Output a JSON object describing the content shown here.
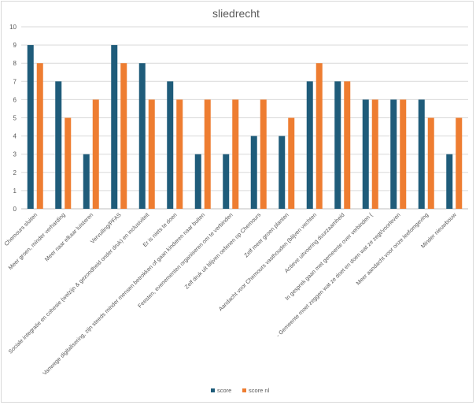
{
  "chart_data": {
    "type": "bar",
    "title": "sliedrecht",
    "xlabel": "",
    "ylabel": "",
    "ylim": [
      0,
      10
    ],
    "yticks": [
      0,
      1,
      2,
      3,
      4,
      5,
      6,
      7,
      8,
      9,
      10
    ],
    "grid": "horizontal",
    "legend_position": "bottom",
    "categories": [
      "Chemours sluiten",
      "Meer groen, minder verharding",
      "Meer naar elkaar luisteren",
      "Vervuiling/PFAS",
      "Sociale integratie en cohesie (welzijn & gezondheid onder druk) en inclusiviteit",
      "Er is niets te doen",
      "Vanwege digitalisering, zijn steeds minder mensen betrokken of gaan kinderen naar buiten",
      "Feesten, evenementen organiseren om te verbinden",
      "Zelf druk uit blijven oefenen op Chemours",
      "Zelf meer groen planten",
      "Aandacht voor Chemours vasthouden (blijven vechten",
      "Actieve uitvoering duurzaamheid",
      "In gesprek gaan met gemeente over verbinden (",
      "- Gemeente moet zeggen wat ze doet en doen wat ze zegt/voorleven",
      "Meer aandacht voor onze leefomgeving",
      "Minder nieuwbouw"
    ],
    "series": [
      {
        "name": "score",
        "color": "#1f5c7a",
        "values": [
          9,
          7,
          3,
          9,
          8,
          7,
          3,
          3,
          4,
          4,
          7,
          7,
          6,
          6,
          6,
          3
        ]
      },
      {
        "name": "score nl",
        "color": "#ee7d31",
        "values": [
          8,
          5,
          6,
          8,
          6,
          6,
          6,
          6,
          6,
          5,
          8,
          7,
          6,
          6,
          5,
          5
        ]
      }
    ]
  }
}
